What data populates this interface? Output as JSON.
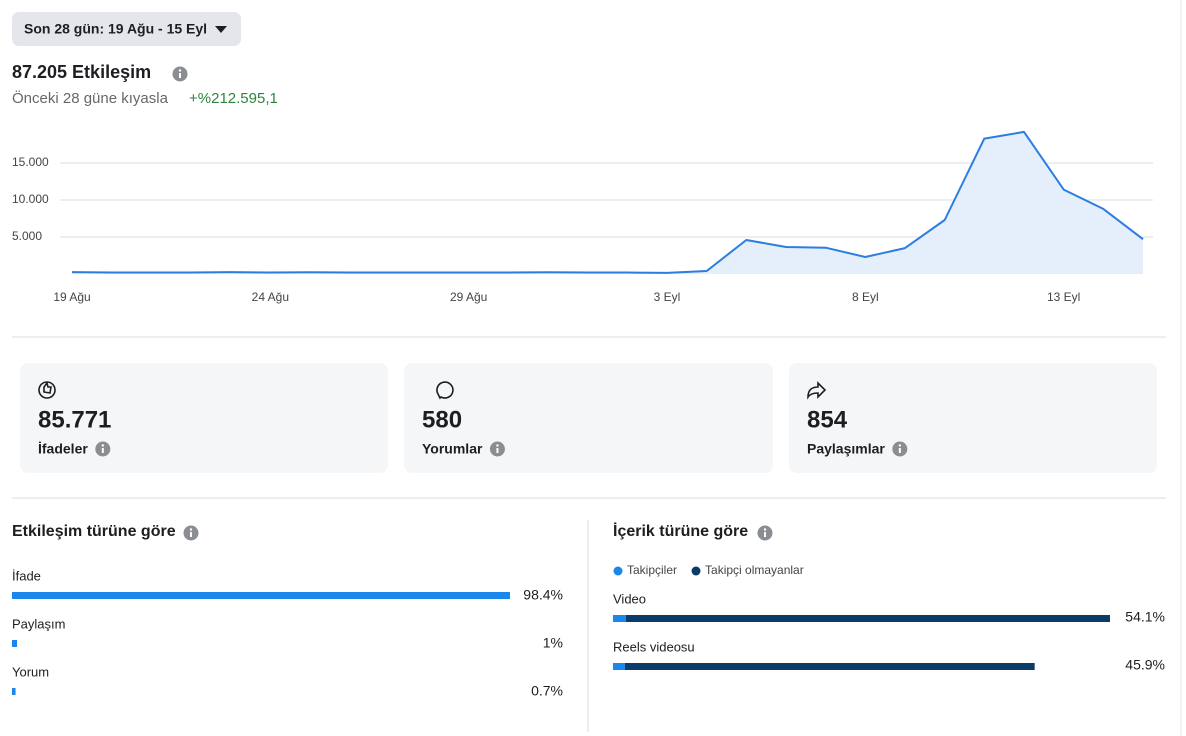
{
  "header": {
    "date_range": "Son 28 gün: 19 Ağu - 15 Eyl",
    "total": "87.205 Etkileşim",
    "comparison_label": "Önceki 28 güne kıyasla",
    "comparison_value": "+%212.595,1"
  },
  "chart_data": [
    {
      "type": "line",
      "categories": [
        "19 Ağu",
        null,
        null,
        null,
        null,
        "24 Ağu",
        null,
        null,
        null,
        null,
        "29 Ağu",
        null,
        null,
        null,
        null,
        "3 Eyl",
        null,
        null,
        null,
        null,
        "8 Eyl",
        null,
        null,
        null,
        null,
        "13 Eyl",
        null,
        null
      ],
      "values": [
        250,
        200,
        200,
        200,
        250,
        200,
        230,
        200,
        200,
        200,
        200,
        200,
        230,
        200,
        200,
        150,
        400,
        4600,
        3650,
        3550,
        2300,
        3500,
        7300,
        18300,
        19200,
        11400,
        8800,
        4700
      ],
      "color": "#2b7de0",
      "fill": "#e5effb",
      "ylim": [
        0,
        20000
      ],
      "yticks": [
        {
          "value": 5000,
          "label": "5.000"
        },
        {
          "value": 10000,
          "label": "10.000"
        },
        {
          "value": 15000,
          "label": "15.000"
        }
      ],
      "grid": true
    },
    {
      "type": "hbar",
      "title": "Etkileşim türüne göre",
      "categories": [
        "İfade",
        "Paylaşım",
        "Yorum"
      ],
      "values": [
        98.4,
        1,
        0.7
      ],
      "value_labels": [
        "98.4%",
        "1%",
        "0.7%"
      ],
      "color": "#1b87ea"
    },
    {
      "type": "stacked_hbar",
      "title": "İçerik türüne göre",
      "categories": [
        "Video",
        "Reels videosu"
      ],
      "series": [
        {
          "name": "Takipçiler",
          "color": "#1b87ea",
          "values": [
            1.4,
            1.3
          ]
        },
        {
          "name": "Takipçi olmayanlar",
          "color": "#0b3b69",
          "values": [
            52.7,
            44.6
          ]
        }
      ],
      "totals": [
        54.1,
        45.9
      ],
      "value_labels": [
        "54.1%",
        "45.9%"
      ]
    }
  ],
  "cards": [
    {
      "value": "85.771",
      "label": "İfadeler"
    },
    {
      "value": "580",
      "label": "Yorumlar"
    },
    {
      "value": "854",
      "label": "Paylaşımlar"
    }
  ]
}
